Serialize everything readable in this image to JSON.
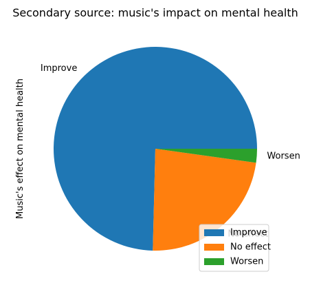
{
  "chart_data": {
    "type": "pie",
    "title": "Secondary source: music's impact on mental health",
    "ylabel": "Music's effect on mental health",
    "categories": [
      "Improve",
      "No effect",
      "Worsen"
    ],
    "values": [
      74.6,
      23.2,
      2.2
    ],
    "colors": [
      "#1f77b4",
      "#ff7f0e",
      "#2ca02c"
    ],
    "legend": {
      "placement": "lower-right",
      "entries": [
        "Improve",
        "No effect",
        "Worsen"
      ]
    }
  }
}
